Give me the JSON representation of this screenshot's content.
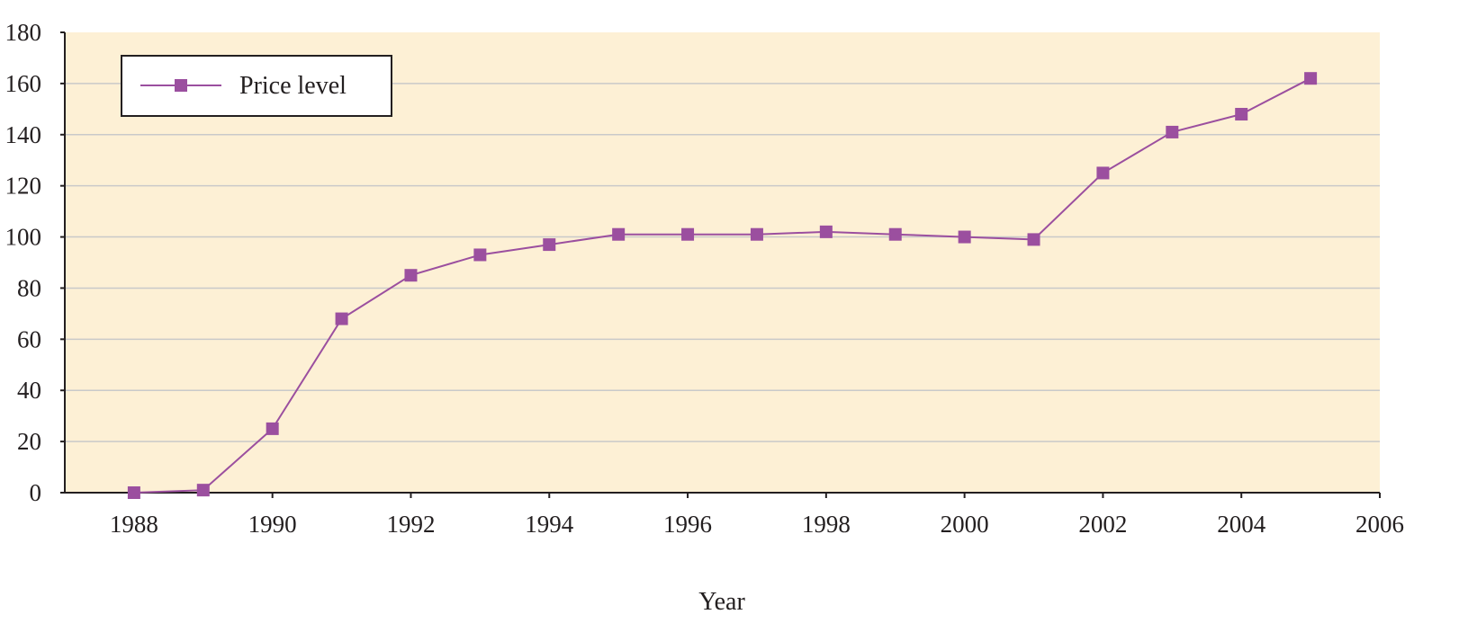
{
  "chart_data": {
    "type": "line",
    "title": "",
    "xlabel": "Year",
    "ylabel": "",
    "xlim": [
      1987,
      2006
    ],
    "ylim": [
      0,
      180
    ],
    "x_ticks": [
      1988,
      1990,
      1992,
      1994,
      1996,
      1998,
      2000,
      2002,
      2004,
      2006
    ],
    "y_ticks": [
      0,
      20,
      40,
      60,
      80,
      100,
      120,
      140,
      160,
      180
    ],
    "grid": "horizontal",
    "legend_position": "top-left",
    "colors": {
      "plot_background": "#fdf0d5",
      "gridline": "#c9c9c9",
      "series": "#9b4f9f"
    },
    "series": [
      {
        "name": "Price level",
        "marker": "square",
        "x": [
          1988,
          1989,
          1990,
          1991,
          1992,
          1993,
          1994,
          1995,
          1996,
          1997,
          1998,
          1999,
          2000,
          2001,
          2002,
          2003,
          2004,
          2005
        ],
        "values": [
          0,
          1,
          25,
          68,
          85,
          93,
          97,
          101,
          101,
          101,
          102,
          101,
          100,
          99,
          125,
          141,
          148,
          162
        ]
      }
    ]
  }
}
